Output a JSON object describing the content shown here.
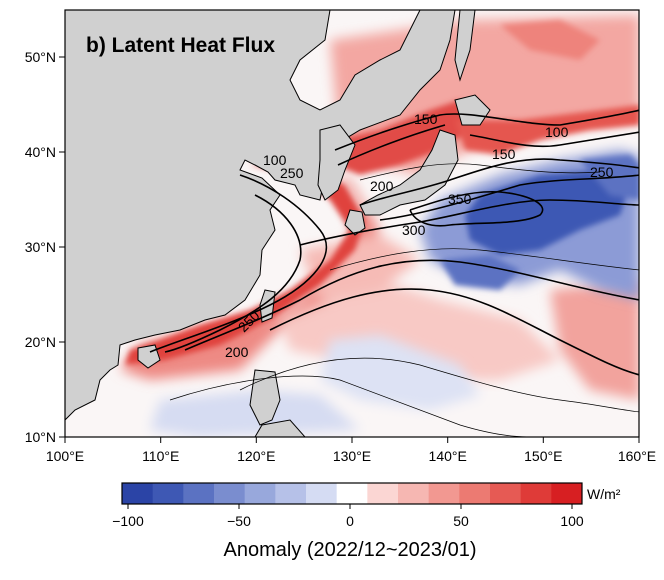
{
  "map": {
    "panel_title": "b) Latent Heat Flux",
    "lon_ticks": [
      "100°E",
      "110°E",
      "120°E",
      "130°E",
      "140°E",
      "150°E",
      "160°E"
    ],
    "lat_ticks": [
      "10°N",
      "20°N",
      "30°N",
      "40°N",
      "50°N"
    ],
    "contour_labels": [
      "150",
      "100",
      "150",
      "100",
      "200",
      "250",
      "300",
      "350",
      "250",
      "200",
      "250"
    ],
    "land_color": "#d0d0d0"
  },
  "colorbar": {
    "unit": "W/m²",
    "ticks": [
      "−100",
      "−50",
      "0",
      "50",
      "100"
    ],
    "title": "Anomaly (2022/12~2023/01)",
    "colors": [
      "#2b44a6",
      "#3e58b4",
      "#5b72c2",
      "#7a8dcf",
      "#98a8dc",
      "#b6c1e8",
      "#d5dcf3",
      "#ffffff",
      "#fbd6d3",
      "#f6b7b2",
      "#f29891",
      "#ec7a72",
      "#e65a54",
      "#df3b38",
      "#d71f22"
    ]
  }
}
